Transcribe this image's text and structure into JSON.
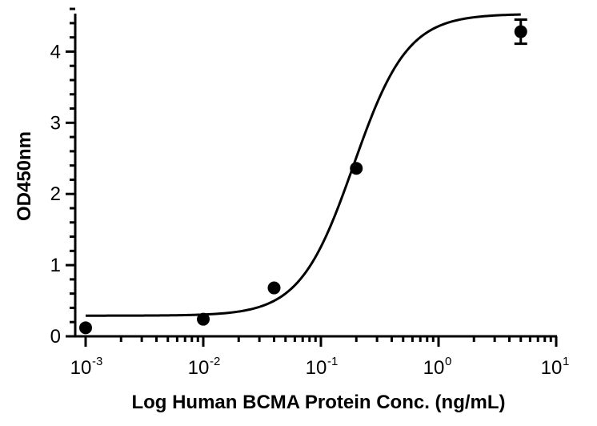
{
  "chart_data": {
    "type": "scatter",
    "title": "",
    "xlabel": "Log Human BCMA Protein Conc. (ng/mL)",
    "ylabel": "OD450nm",
    "x_scale": "log",
    "xlim": [
      0.001,
      10
    ],
    "ylim": [
      0,
      4.5
    ],
    "x_ticks": [
      {
        "value": 0.001,
        "base": "10",
        "exp": "-3"
      },
      {
        "value": 0.01,
        "base": "10",
        "exp": "-2"
      },
      {
        "value": 0.1,
        "base": "10",
        "exp": "-1"
      },
      {
        "value": 1,
        "base": "10",
        "exp": "0"
      },
      {
        "value": 10,
        "base": "10",
        "exp": "1"
      }
    ],
    "y_ticks": [
      "0",
      "1",
      "2",
      "3",
      "4"
    ],
    "grid": false,
    "legend": "none",
    "points": [
      {
        "x": 0.001,
        "y": 0.12
      },
      {
        "x": 0.01,
        "y": 0.24
      },
      {
        "x": 0.04,
        "y": 0.68
      },
      {
        "x": 0.2,
        "y": 2.36
      },
      {
        "x": 5,
        "y": 4.28,
        "error": 0.17
      }
    ],
    "fit": {
      "model": "4PL",
      "bottom": 0.29,
      "top": 4.53,
      "ec50": 0.19,
      "hill": 1.9
    },
    "colors": {
      "marker": "#000000",
      "curve": "#000000"
    }
  }
}
